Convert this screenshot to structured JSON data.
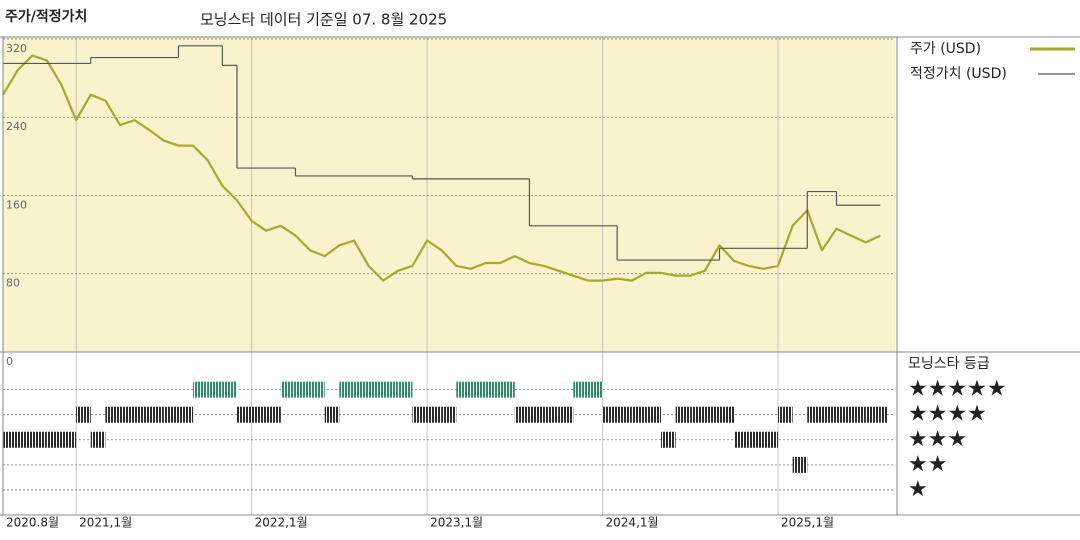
{
  "chart_data": [
    {
      "type": "line",
      "title": "주가/적정가치",
      "subtitle": "모닝스타 데이터 기준일 07. 8월 2025",
      "background": "#f8f3cc",
      "grid": true,
      "xlim": [
        "2020-08",
        "2025-09"
      ],
      "xticks": [
        {
          "value": "2020-08",
          "label": "2020.8월"
        },
        {
          "value": "2021-01",
          "label": "2021,1월"
        },
        {
          "value": "2022-01",
          "label": "2022,1월"
        },
        {
          "value": "2023-01",
          "label": "2023,1월"
        },
        {
          "value": "2024-01",
          "label": "2024,1월"
        },
        {
          "value": "2025-01",
          "label": "2025,1월"
        }
      ],
      "ylim": [
        0,
        322
      ],
      "yticks": [
        0,
        80,
        160,
        240,
        320
      ],
      "series": [
        {
          "name": "주가 (USD)",
          "color": "#a9a82b",
          "x": [
            "2020-08",
            "2020-09",
            "2020-10",
            "2020-11",
            "2020-12",
            "2021-01",
            "2021-02",
            "2021-03",
            "2021-04",
            "2021-05",
            "2021-06",
            "2021-07",
            "2021-08",
            "2021-09",
            "2021-10",
            "2021-11",
            "2021-12",
            "2022-01",
            "2022-02",
            "2022-03",
            "2022-04",
            "2022-05",
            "2022-06",
            "2022-07",
            "2022-08",
            "2022-09",
            "2022-10",
            "2022-11",
            "2022-12",
            "2023-01",
            "2023-02",
            "2023-03",
            "2023-04",
            "2023-05",
            "2023-06",
            "2023-07",
            "2023-08",
            "2023-09",
            "2023-10",
            "2023-11",
            "2023-12",
            "2024-01",
            "2024-02",
            "2024-03",
            "2024-04",
            "2024-05",
            "2024-06",
            "2024-07",
            "2024-08",
            "2024-09",
            "2024-10",
            "2024-11",
            "2024-12",
            "2025-01",
            "2025-02",
            "2025-03",
            "2025-04",
            "2025-05",
            "2025-06",
            "2025-07",
            "2025-08"
          ],
          "values": [
            263,
            288,
            303,
            298,
            273,
            237,
            263,
            257,
            232,
            237,
            227,
            216,
            211,
            211,
            196,
            170,
            155,
            134,
            124,
            129,
            119,
            104,
            98,
            109,
            114,
            88,
            73,
            83,
            88,
            114,
            104,
            88,
            85,
            91,
            91,
            98,
            91,
            88,
            83,
            78,
            73,
            73,
            75,
            73,
            81,
            81,
            78,
            78,
            83,
            109,
            93,
            88,
            85,
            88,
            129,
            145,
            104,
            126,
            119,
            112,
            119
          ]
        },
        {
          "name": "적정가치 (USD)",
          "color": "#555555",
          "step": true,
          "x": [
            "2020-08",
            "2021-02",
            "2021-08",
            "2021-11",
            "2021-12",
            "2022-04",
            "2022-12",
            "2023-08",
            "2024-02",
            "2024-09",
            "2025-03",
            "2025-05",
            "2025-08"
          ],
          "values": [
            295,
            301,
            313,
            293,
            188,
            180,
            177,
            129,
            94,
            106,
            164,
            150,
            150
          ]
        }
      ]
    },
    {
      "type": "rating",
      "title": "모닝스타 등급",
      "ylim": [
        0,
        6.5
      ],
      "yticks": [
        {
          "value": 5,
          "label": "★★★★★"
        },
        {
          "value": 4,
          "label": "★★★★"
        },
        {
          "value": 3,
          "label": "★★★"
        },
        {
          "value": 2,
          "label": "★★"
        },
        {
          "value": 1,
          "label": "★"
        }
      ],
      "level_colors": [
        "#2f8a6c",
        "#2b2b2b",
        "#2b2b2b",
        "#2b2b2b",
        "#2b2b2b"
      ],
      "x": [
        "2020-08",
        "2020-09",
        "2020-10",
        "2020-11",
        "2020-12",
        "2021-01",
        "2021-02",
        "2021-03",
        "2021-04",
        "2021-05",
        "2021-06",
        "2021-07",
        "2021-08",
        "2021-09",
        "2021-10",
        "2021-11",
        "2021-12",
        "2022-01",
        "2022-02",
        "2022-03",
        "2022-04",
        "2022-05",
        "2022-06",
        "2022-07",
        "2022-08",
        "2022-09",
        "2022-10",
        "2022-11",
        "2022-12",
        "2023-01",
        "2023-02",
        "2023-03",
        "2023-04",
        "2023-05",
        "2023-06",
        "2023-07",
        "2023-08",
        "2023-09",
        "2023-10",
        "2023-11",
        "2023-12",
        "2024-01",
        "2024-02",
        "2024-03",
        "2024-04",
        "2024-05",
        "2024-06",
        "2024-07",
        "2024-08",
        "2024-09",
        "2024-10",
        "2024-11",
        "2024-12",
        "2025-01",
        "2025-02",
        "2025-03",
        "2025-04",
        "2025-05",
        "2025-06",
        "2025-07",
        "2025-08"
      ],
      "values": [
        3,
        3,
        3,
        3,
        3,
        4,
        3,
        4,
        4,
        4,
        4,
        4,
        4,
        5,
        5,
        5,
        4,
        4,
        4,
        5,
        5,
        5,
        4,
        5,
        5,
        5,
        5,
        5,
        4,
        4,
        4,
        5,
        5,
        5,
        5,
        4,
        4,
        4,
        4,
        5,
        5,
        4,
        4,
        4,
        4,
        3,
        4,
        4,
        4,
        4,
        3,
        3,
        3,
        4,
        2,
        4,
        4,
        4,
        4,
        4,
        4
      ]
    }
  ]
}
